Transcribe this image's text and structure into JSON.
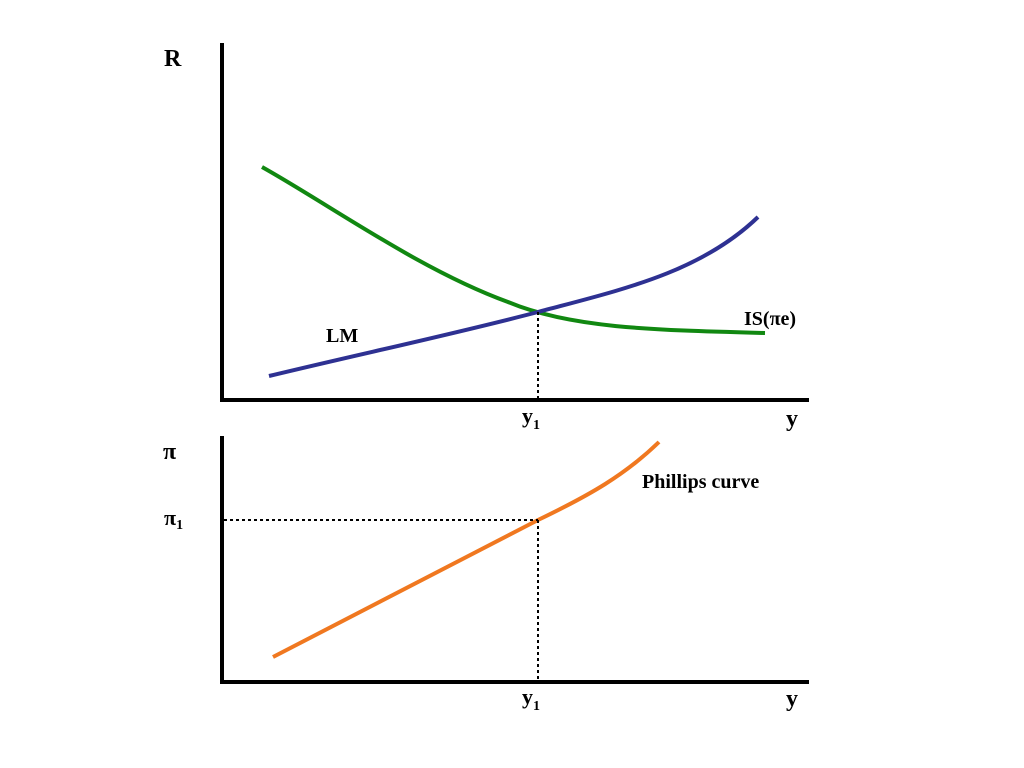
{
  "top_panel": {
    "y_axis_label": "R",
    "x_axis_label": "y",
    "tick_x": {
      "main": "y",
      "sub": "1"
    },
    "curves": {
      "lm": {
        "label": "LM",
        "color": "#2e3192"
      },
      "is": {
        "label": "IS(πe)",
        "color": "#118811"
      }
    }
  },
  "bottom_panel": {
    "y_axis_label": "π",
    "x_axis_label": "y",
    "tick_x": {
      "main": "y",
      "sub": "1"
    },
    "tick_y": {
      "main": "π",
      "sub": "1"
    },
    "curves": {
      "phillips": {
        "label": "Phillips curve",
        "color": "#f07820"
      }
    }
  },
  "colors": {
    "axis": "#000000",
    "guide": "#000000"
  }
}
